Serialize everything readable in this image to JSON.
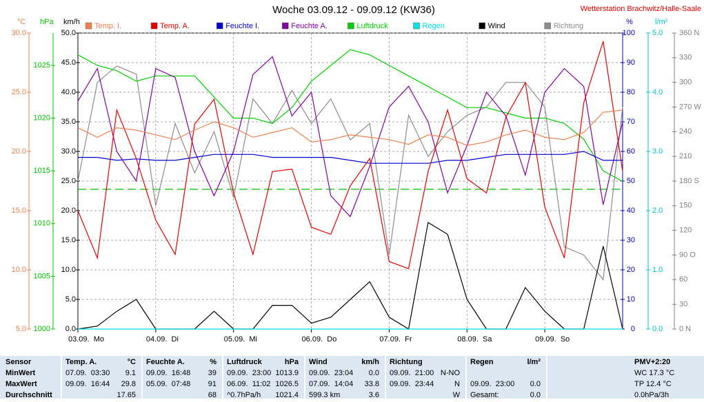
{
  "chart_data": {
    "type": "line",
    "title": "Woche 03.09.12 - 09.09.12 (KW36)",
    "subtitle": "Wetterstation Brachwitz/Halle-Saale",
    "x": [
      0,
      6,
      12,
      18,
      24,
      30,
      36,
      42,
      48,
      54,
      60,
      66,
      72,
      78,
      84,
      90,
      96,
      102,
      108,
      114,
      120,
      126,
      132,
      138,
      144,
      150,
      156,
      162,
      168
    ],
    "xlim": [
      0,
      168
    ],
    "xticks": [
      {
        "value": 0,
        "label": "03.09.  Mo"
      },
      {
        "value": 24,
        "label": "04.09.  Di"
      },
      {
        "value": 48,
        "label": "05.09.  Mi"
      },
      {
        "value": 72,
        "label": "06.09.  Do"
      },
      {
        "value": 96,
        "label": "07.09.  Fr"
      },
      {
        "value": 120,
        "label": "08.09.  Sa"
      },
      {
        "value": 144,
        "label": "09.09.  So"
      }
    ],
    "grid": true,
    "ylabel": "°C",
    "ycolor": "#f08050",
    "ylim": [
      5,
      30
    ],
    "yticks": [
      {
        "value": 5,
        "label": "5.0"
      },
      {
        "value": 10,
        "label": "10.0"
      },
      {
        "value": 15,
        "label": "15.0"
      },
      {
        "value": 20,
        "label": "20.0"
      },
      {
        "value": 25,
        "label": "25.0"
      },
      {
        "value": 30,
        "label": "30.0"
      }
    ],
    "y2label": "hPa",
    "y2color": "#00c000",
    "y2lim": [
      1000,
      1028.07
    ],
    "y2ticks": [
      1000,
      1005,
      1010,
      1015,
      1020,
      1025
    ],
    "y3label": "km/h",
    "y3color": "#000000",
    "y3lim": [
      0,
      50
    ],
    "y3ticks": [
      {
        "value": 0,
        "label": "0.0"
      },
      {
        "value": 5,
        "label": "5.0"
      },
      {
        "value": 10,
        "label": "10.0"
      },
      {
        "value": 15,
        "label": "15.0"
      },
      {
        "value": 20,
        "label": "20.0"
      },
      {
        "value": 25,
        "label": "25.0"
      },
      {
        "value": 30,
        "label": "30.0"
      },
      {
        "value": 35,
        "label": "35.0"
      },
      {
        "value": 40,
        "label": "40.0"
      },
      {
        "value": 45,
        "label": "45.0"
      },
      {
        "value": 50,
        "label": "50.0"
      }
    ],
    "y4label": "%",
    "y4color": "#0000c0",
    "y4lim": [
      0,
      100
    ],
    "y4ticks": [
      0,
      10,
      20,
      30,
      40,
      50,
      60,
      70,
      80,
      90,
      100
    ],
    "y5label": "l/m²",
    "y5color": "#00c8c8",
    "y5lim": [
      0,
      5
    ],
    "y5ticks": [
      {
        "value": 0,
        "label": "0.0"
      },
      {
        "value": 1,
        "label": "1.0"
      },
      {
        "value": 2,
        "label": "2.0"
      },
      {
        "value": 3,
        "label": "3.0"
      },
      {
        "value": 4,
        "label": "4.0"
      },
      {
        "value": 5,
        "label": "5.0"
      }
    ],
    "y6color": "#808080",
    "y6lim": [
      0,
      360
    ],
    "y6ticks": [
      {
        "value": 0,
        "label": "0 N"
      },
      30,
      60,
      {
        "value": 90,
        "label": "90 O"
      },
      120,
      150,
      {
        "value": 180,
        "label": "180 S"
      },
      210,
      240,
      {
        "value": 270,
        "label": "270 W"
      },
      300,
      330,
      {
        "value": 360,
        "label": "360 N"
      }
    ],
    "reference_line": {
      "axis": "y2",
      "value": 1013.25,
      "color": "#00c000"
    },
    "series": [
      {
        "name": "Temp. I.",
        "color": "#f08050",
        "axis": "y",
        "values": [
          22.0,
          21.2,
          22.0,
          21.8,
          21.4,
          21.0,
          21.8,
          22.5,
          22.0,
          21.2,
          21.6,
          22.0,
          20.8,
          21.0,
          21.4,
          21.2,
          21.0,
          20.6,
          21.4,
          21.2,
          20.5,
          20.8,
          21.4,
          21.8,
          21.2,
          21.0,
          21.6,
          23.3,
          23.5
        ]
      },
      {
        "name": "Temp. A.",
        "color": "#e00000",
        "axis": "y",
        "values": [
          15.0,
          11.0,
          23.5,
          19.4,
          14.2,
          11.3,
          22.3,
          24.4,
          16.5,
          11.3,
          18.3,
          18.5,
          13.6,
          13.0,
          17.1,
          19.4,
          10.7,
          10.1,
          18.3,
          23.5,
          17.7,
          16.5,
          22.9,
          25.8,
          15.3,
          11.0,
          24.1,
          29.3,
          18.3
        ]
      },
      {
        "name": "Feuchte I.",
        "color": "#0000d0",
        "axis": "y4",
        "values": [
          58,
          58,
          57,
          57.5,
          57,
          57,
          58,
          59,
          59,
          59,
          58,
          58,
          58,
          58,
          57,
          56,
          56,
          56,
          56,
          57,
          57,
          58,
          59,
          59,
          59,
          59,
          60,
          57,
          57
        ]
      },
      {
        "name": "Feuchte A.",
        "color": "#8000a0",
        "axis": "y4",
        "values": [
          77,
          88,
          60,
          50,
          88,
          85,
          60,
          45,
          60,
          86,
          92,
          72,
          80,
          45,
          38,
          55,
          75,
          82,
          70,
          46,
          62,
          80,
          72,
          52,
          80,
          88,
          82,
          42,
          70
        ]
      },
      {
        "name": "Luftdruck",
        "color": "#00d000",
        "axis": "y2",
        "values": [
          1026,
          1025,
          1024.5,
          1023.5,
          1024,
          1024,
          1024,
          1022,
          1020,
          1020,
          1019.5,
          1021,
          1023.5,
          1025,
          1026.5,
          1026,
          1025,
          1024,
          1023,
          1022,
          1021,
          1021,
          1020.5,
          1020,
          1020,
          1019.5,
          1018,
          1015,
          1014
        ]
      },
      {
        "name": "Regen",
        "color": "#00e0e0",
        "axis": "y5",
        "values": [
          0,
          0,
          0,
          0,
          0,
          0,
          0,
          0,
          0,
          0,
          0,
          0,
          0,
          0,
          0,
          0,
          0,
          0,
          0,
          0,
          0,
          0,
          0,
          0,
          0,
          0,
          0,
          0,
          0
        ]
      },
      {
        "name": "Wind",
        "color": "#000000",
        "axis": "y3",
        "values": [
          0,
          0.5,
          3,
          5,
          0,
          0,
          0,
          3,
          0,
          0,
          4,
          4,
          1,
          2,
          5,
          8,
          2,
          0,
          18,
          16,
          5,
          0,
          0,
          7,
          3,
          0,
          0,
          14,
          0
        ]
      },
      {
        "name": "Richtung",
        "color": "#8c8c8c",
        "axis": "y6",
        "values": [
          180,
          300,
          320,
          310,
          150,
          250,
          190,
          240,
          160,
          280,
          250,
          290,
          250,
          280,
          230,
          250,
          90,
          260,
          210,
          240,
          260,
          270,
          300,
          300,
          270,
          100,
          90,
          60,
          270
        ]
      }
    ]
  },
  "stats": {
    "sensor_label": "Sensor",
    "row_labels": [
      "MinWert",
      "MaxWert",
      "Durchschnitt"
    ],
    "columns": [
      {
        "title": "Temp. A.",
        "unit": "°C",
        "rows": [
          [
            "07.09.  03:30",
            "9.1"
          ],
          [
            "09.09.  16:44",
            "29.8"
          ],
          [
            null,
            "17.65"
          ]
        ]
      },
      {
        "title": "Feuchte A.",
        "unit": "%",
        "rows": [
          [
            "09.09.  16:48",
            "39"
          ],
          [
            "05.09.  07:48",
            "91"
          ],
          [
            null,
            "68"
          ]
        ]
      },
      {
        "title": "Luftdruck",
        "unit": "hPa",
        "rows": [
          [
            "09.09.  23:00",
            "1013.9"
          ],
          [
            "06.09.  11:02",
            "1026.5"
          ],
          [
            "^0.7hPa/h",
            "1021.4"
          ]
        ]
      },
      {
        "title": "Wind",
        "unit": "km/h",
        "rows": [
          [
            "09.09.  23:04",
            "0.0"
          ],
          [
            "07.09.  14:04",
            "33.8"
          ],
          [
            "599.3 km",
            "3.6"
          ]
        ]
      },
      {
        "title": "Richtung",
        "unit": null,
        "rows": [
          [
            "09.09.  21:00",
            "N-NO"
          ],
          [
            "09.09.  23:44",
            "N"
          ],
          [
            null,
            "W"
          ]
        ]
      },
      {
        "title": "Regen",
        "unit": "l/m²",
        "rows": [
          [
            null,
            null
          ],
          [
            "09.09.  23:00",
            "0.0"
          ],
          [
            "Gesamt:",
            "0.0"
          ]
        ]
      }
    ],
    "pmv": {
      "title": "PMV+2:20",
      "rows": [
        "WC 17.3 °C",
        "TP 12.4 °C",
        "0.0hPa/3h"
      ]
    }
  }
}
